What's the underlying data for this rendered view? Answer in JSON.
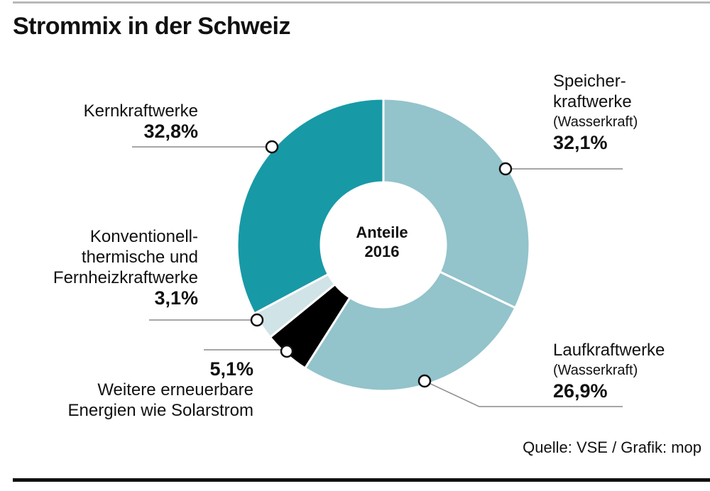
{
  "title": "Strommix in der Schweiz",
  "center_label": [
    "Anteile",
    "2016"
  ],
  "source": "Quelle: VSE / Grafik: mop",
  "colors": {
    "kern": "#1899a6",
    "wasser": "#93c3cb",
    "konv": "#d0e3e6",
    "weitere": "#000000",
    "leader": "#888888"
  },
  "labels": {
    "kern": {
      "lines": [
        "Kernkraftwerke"
      ],
      "pct": "32,8%"
    },
    "speicher": {
      "lines": [
        "Speicher-",
        "kraftwerke"
      ],
      "sub": "(Wasserkraft)",
      "pct": "32,1%"
    },
    "lauf": {
      "lines": [
        "Laufkraftwerke"
      ],
      "sub": "(Wasserkraft)",
      "pct": "26,9%"
    },
    "konv": {
      "lines": [
        "Konventionell-",
        "thermische und",
        "Fernheizkraftwerke"
      ],
      "pct": "3,1%"
    },
    "weitere": {
      "pct": "5,1%",
      "lines": [
        "Weitere erneuerbare",
        "Energien wie Solarstrom"
      ]
    }
  },
  "chart_data": {
    "type": "pie",
    "title": "Strommix in der Schweiz",
    "categories": [
      "Speicherkraftwerke (Wasserkraft)",
      "Laufkraftwerke (Wasserkraft)",
      "Weitere erneuerbare Energien wie Solarstrom",
      "Konventionell-thermische und Fernheizkraftwerke",
      "Kernkraftwerke"
    ],
    "values": [
      32.1,
      26.9,
      5.1,
      3.1,
      32.8
    ],
    "unit": "%",
    "year": "2016"
  }
}
